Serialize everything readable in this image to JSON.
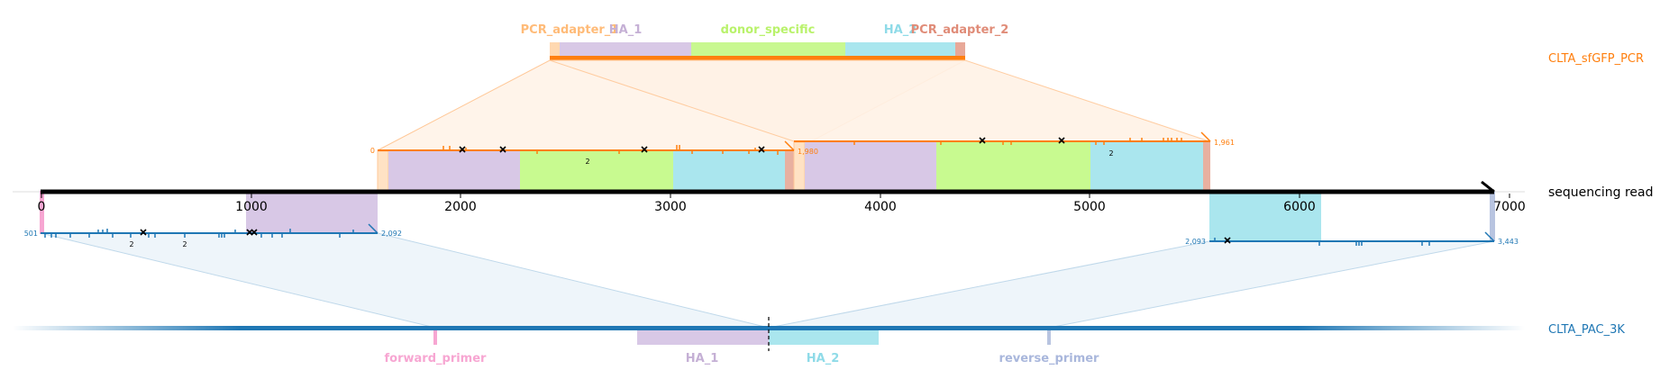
{
  "references": {
    "top": {
      "name": "CLTA_sfGFP_PCR",
      "color": "#ff7f0e"
    },
    "read": {
      "name": "sequencing read",
      "color": "#000000"
    },
    "bottom": {
      "name": "CLTA_PAC_3K",
      "color": "#1f77b4"
    }
  },
  "read_axis": {
    "ticks": [
      "0",
      "1000",
      "2000",
      "3000",
      "4000",
      "5000",
      "6000",
      "7000"
    ]
  },
  "top_features": [
    {
      "label": "PCR_adapter_1",
      "color": "#ffbb78"
    },
    {
      "label": "HA_1",
      "color": "#c5b0d5"
    },
    {
      "label": "donor_specific",
      "color": "#b9f26b"
    },
    {
      "label": "HA_2",
      "color": "#8fdbe8"
    },
    {
      "label": "PCR_adapter_2",
      "color": "#e08c78"
    }
  ],
  "bottom_features": [
    {
      "label": "forward_primer",
      "color": "#f7a6d2"
    },
    {
      "label": "HA_1",
      "color": "#c5b0d5"
    },
    {
      "label": "HA_2",
      "color": "#8fdbe8"
    },
    {
      "label": "reverse_primer",
      "color": "#a9b7dc"
    }
  ],
  "alignments": {
    "top_left": {
      "start": "0",
      "end": "1,980"
    },
    "top_right": {
      "end": "1,961"
    },
    "bottom_left": {
      "start": "501",
      "end": "2,092"
    },
    "bottom_right": {
      "start": "2,093",
      "end": "3,443"
    }
  },
  "indel_counts": [
    "2",
    "2",
    "2",
    "2"
  ]
}
